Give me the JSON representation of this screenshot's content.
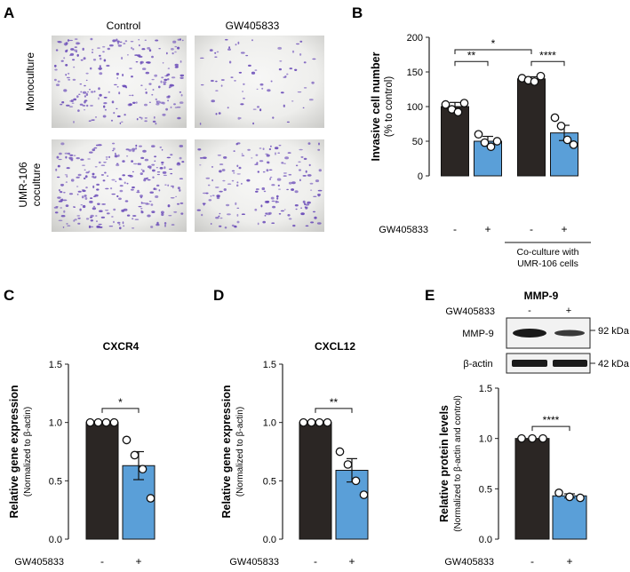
{
  "panel_letters": [
    "A",
    "B",
    "C",
    "D",
    "E"
  ],
  "colors": {
    "control": "#2b2624",
    "treated": "#5a9fd8",
    "violet": "#6a4bb8"
  },
  "panel_a": {
    "columns": [
      "Control",
      "GW405833"
    ],
    "rows": [
      [
        "Monoculture"
      ],
      [
        "UMR-106",
        "coculture"
      ]
    ]
  },
  "panel_e_blot": {
    "title": "MMP-9",
    "treatment_label": "GW405833",
    "lane_signs": [
      "-",
      "+"
    ],
    "rows": [
      {
        "name": "MMP-9",
        "kda": "92 kDa"
      },
      {
        "name": "β-actin",
        "kda": "42 kDa"
      }
    ]
  },
  "chart_data": [
    {
      "type": "bar",
      "panel": "B",
      "ylabel": [
        "Invasive cell number",
        "(% to control)"
      ],
      "ylim": [
        0,
        200
      ],
      "yticks": [
        "0",
        "50",
        "100",
        "150",
        "200"
      ],
      "treatment_label": "GW405833",
      "signs": [
        "-",
        "+",
        "-",
        "+"
      ],
      "group_label": [
        "Co-culture with",
        "UMR-106 cells"
      ],
      "bars": [
        {
          "value": 100,
          "sem": 6,
          "points": [
            103,
            96,
            92,
            105
          ],
          "series": "control"
        },
        {
          "value": 50,
          "sem": 7,
          "points": [
            60,
            48,
            42,
            50
          ],
          "series": "treated"
        },
        {
          "value": 140,
          "sem": 3,
          "points": [
            141,
            138,
            136,
            144
          ],
          "series": "control"
        },
        {
          "value": 62,
          "sem": 11,
          "points": [
            84,
            72,
            52,
            45
          ],
          "series": "treated"
        }
      ],
      "significance": [
        {
          "from": 0,
          "to": 1,
          "y": 165,
          "label": "**"
        },
        {
          "from": 2,
          "to": 3,
          "y": 165,
          "label": "****"
        },
        {
          "from": 0,
          "to": 2,
          "y": 182,
          "label": "*"
        }
      ]
    },
    {
      "type": "bar",
      "panel": "C",
      "title": "CXCR4",
      "ylabel": [
        "Relative gene expression",
        "(Normalized to β-actin)"
      ],
      "ylim": [
        0,
        1.5
      ],
      "yticks": [
        "0.0",
        "0.5",
        "1.0",
        "1.5"
      ],
      "treatment_label": "GW405833",
      "signs": [
        "-",
        "+"
      ],
      "bars": [
        {
          "value": 1.0,
          "sem": 0,
          "points": [
            1.0,
            1.0,
            1.0,
            1.0
          ],
          "series": "control"
        },
        {
          "value": 0.63,
          "sem": 0.12,
          "points": [
            0.85,
            0.72,
            0.6,
            0.35
          ],
          "series": "treated"
        }
      ],
      "significance": [
        {
          "from": 0,
          "to": 1,
          "y": 1.12,
          "label": "*"
        }
      ]
    },
    {
      "type": "bar",
      "panel": "D",
      "title": "CXCL12",
      "ylabel": [
        "Relative gene expression",
        "(Normalized to β-actin)"
      ],
      "ylim": [
        0,
        1.5
      ],
      "yticks": [
        "0.0",
        "0.5",
        "1.0",
        "1.5"
      ],
      "treatment_label": "GW405833",
      "signs": [
        "-",
        "+"
      ],
      "bars": [
        {
          "value": 1.0,
          "sem": 0,
          "points": [
            1.0,
            1.0,
            1.0,
            1.0
          ],
          "series": "control"
        },
        {
          "value": 0.59,
          "sem": 0.1,
          "points": [
            0.75,
            0.64,
            0.5,
            0.38
          ],
          "series": "treated"
        }
      ],
      "significance": [
        {
          "from": 0,
          "to": 1,
          "y": 1.12,
          "label": "**"
        }
      ]
    },
    {
      "type": "bar",
      "panel": "E",
      "ylabel": [
        "Relative protein levels",
        "(Normalized to β-actin and control)"
      ],
      "ylim": [
        0,
        1.5
      ],
      "yticks": [
        "0.0",
        "0.5",
        "1.0",
        "1.5"
      ],
      "treatment_label": "GW405833",
      "signs": [
        "-",
        "+"
      ],
      "bars": [
        {
          "value": 1.0,
          "sem": 0,
          "points": [
            1.0,
            1.0,
            1.0
          ],
          "series": "control"
        },
        {
          "value": 0.43,
          "sem": 0.02,
          "points": [
            0.46,
            0.42,
            0.41
          ],
          "series": "treated"
        }
      ],
      "significance": [
        {
          "from": 0,
          "to": 1,
          "y": 1.12,
          "label": "****"
        }
      ]
    }
  ]
}
